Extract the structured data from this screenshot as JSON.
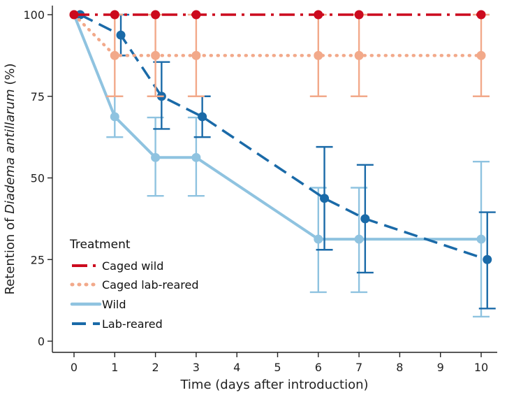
{
  "chart_data": {
    "type": "line",
    "xlabel": "Time (days after introduction)",
    "ylabel": {
      "prefix": "Retention of ",
      "italic": "Diadema antillarum",
      "suffix": " (%)"
    },
    "x_ticks": [
      0,
      1,
      2,
      3,
      4,
      5,
      6,
      7,
      8,
      9,
      10
    ],
    "y_ticks": [
      0,
      25,
      50,
      75,
      100
    ],
    "xlim": [
      -0.5,
      10.5
    ],
    "ylim": [
      0,
      100
    ],
    "legend": {
      "title": "Treatment",
      "position": "bottom-left"
    },
    "series": [
      {
        "name": "Caged wild",
        "color": "#cc0a1e",
        "dash": "dash-dot",
        "points": [
          {
            "x": 0,
            "y": 100,
            "lo": 100,
            "hi": 100
          },
          {
            "x": 1,
            "y": 100,
            "lo": 100,
            "hi": 100
          },
          {
            "x": 2,
            "y": 100,
            "lo": 100,
            "hi": 100
          },
          {
            "x": 3,
            "y": 100,
            "lo": 100,
            "hi": 100
          },
          {
            "x": 6,
            "y": 100,
            "lo": 100,
            "hi": 100
          },
          {
            "x": 7,
            "y": 100,
            "lo": 100,
            "hi": 100
          },
          {
            "x": 10,
            "y": 100,
            "lo": 100,
            "hi": 100
          }
        ]
      },
      {
        "name": "Caged lab-reared",
        "color": "#f2a98a",
        "dash": "dotted",
        "points": [
          {
            "x": 0,
            "y": 100,
            "lo": 100,
            "hi": 100
          },
          {
            "x": 1,
            "y": 87.5,
            "lo": 75,
            "hi": 100
          },
          {
            "x": 2,
            "y": 87.5,
            "lo": 75,
            "hi": 100
          },
          {
            "x": 3,
            "y": 87.5,
            "lo": 75,
            "hi": 100
          },
          {
            "x": 6,
            "y": 87.5,
            "lo": 75,
            "hi": 100
          },
          {
            "x": 7,
            "y": 87.5,
            "lo": 75,
            "hi": 100
          },
          {
            "x": 10,
            "y": 87.5,
            "lo": 75,
            "hi": 100
          }
        ]
      },
      {
        "name": "Wild",
        "color": "#8fc3e0",
        "dash": "solid",
        "points": [
          {
            "x": 0,
            "y": 100,
            "lo": 100,
            "hi": 100
          },
          {
            "x": 1,
            "y": 68.75,
            "lo": 62.5,
            "hi": 75
          },
          {
            "x": 2,
            "y": 56.25,
            "lo": 44.5,
            "hi": 68.5
          },
          {
            "x": 3,
            "y": 56.25,
            "lo": 44.5,
            "hi": 68.5
          },
          {
            "x": 6,
            "y": 31.25,
            "lo": 15,
            "hi": 47
          },
          {
            "x": 7,
            "y": 31.25,
            "lo": 15,
            "hi": 47
          },
          {
            "x": 10,
            "y": 31.25,
            "lo": 7.5,
            "hi": 55
          }
        ]
      },
      {
        "name": "Lab-reared",
        "color": "#1a6aa8",
        "dash": "dashed",
        "points": [
          {
            "x": 0.15,
            "y": 100,
            "lo": 100,
            "hi": 100
          },
          {
            "x": 1.15,
            "y": 93.75,
            "lo": 87.5,
            "hi": 100
          },
          {
            "x": 2.15,
            "y": 75,
            "lo": 65,
            "hi": 85.5
          },
          {
            "x": 3.15,
            "y": 68.75,
            "lo": 62.5,
            "hi": 75
          },
          {
            "x": 6.15,
            "y": 43.75,
            "lo": 28,
            "hi": 59.5
          },
          {
            "x": 7.15,
            "y": 37.5,
            "lo": 21,
            "hi": 54
          },
          {
            "x": 10.15,
            "y": 25,
            "lo": 10,
            "hi": 39.5
          }
        ]
      }
    ]
  }
}
